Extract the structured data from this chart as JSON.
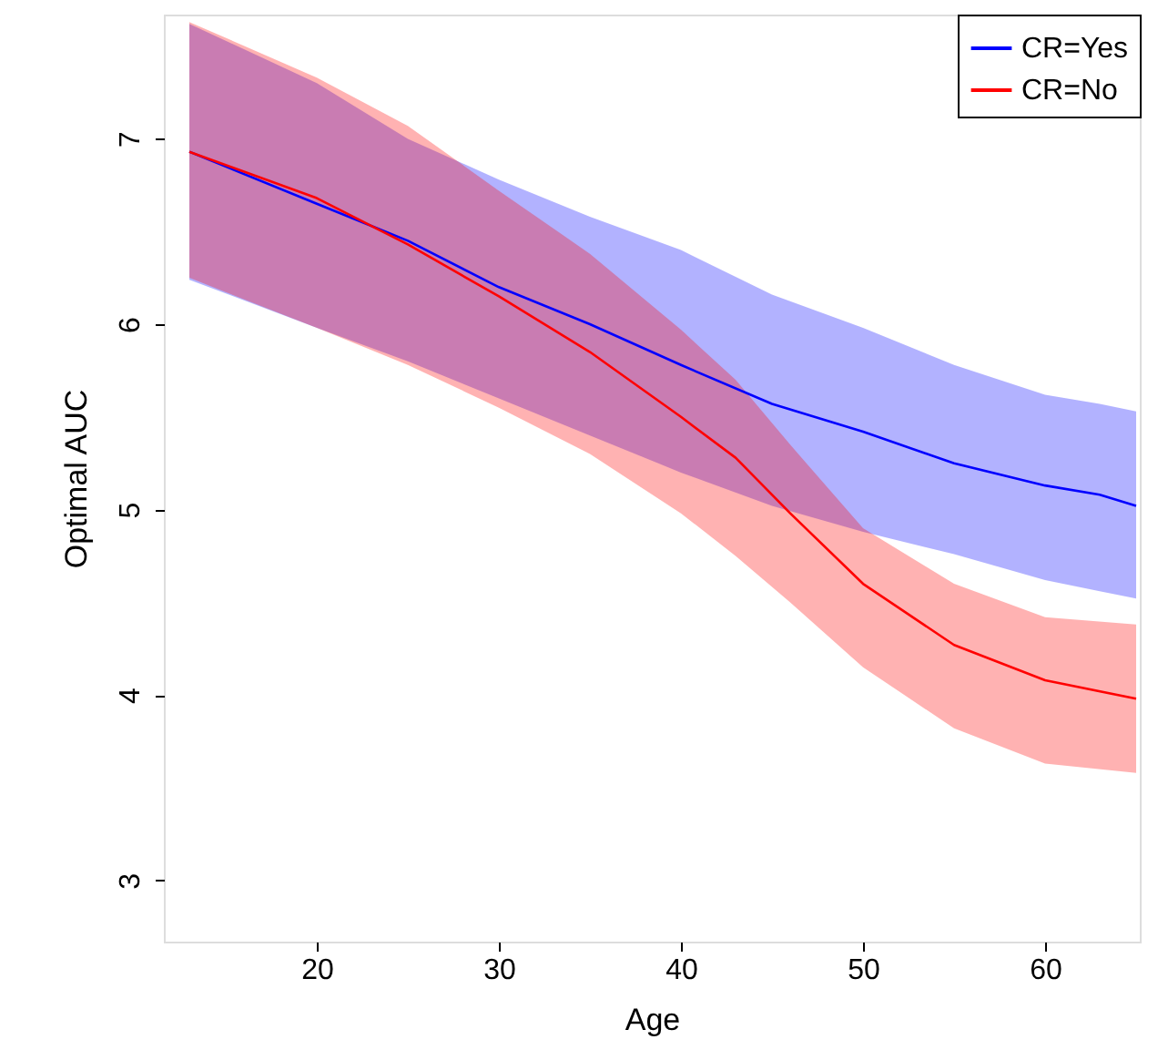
{
  "chart_data": {
    "type": "line",
    "xlabel": "Age",
    "ylabel": "Optimal AUC",
    "xlim": [
      11.6,
      65.2
    ],
    "ylim": [
      2.67,
      7.67
    ],
    "xticks": [
      20,
      30,
      40,
      50,
      60
    ],
    "yticks": [
      3,
      4,
      5,
      6,
      7
    ],
    "grid": false,
    "legend": "top right",
    "line_style": "solid",
    "marker": "none",
    "series": [
      {
        "name": "CR=Yes",
        "color": "#0000ff",
        "x": [
          13,
          20,
          25,
          30,
          35,
          40,
          45,
          50,
          55,
          60,
          63,
          65
        ],
        "values": [
          6.93,
          6.65,
          6.45,
          6.2,
          6.0,
          5.78,
          5.57,
          5.42,
          5.25,
          5.13,
          5.08,
          5.02
        ],
        "upper": [
          7.62,
          7.3,
          7.0,
          6.78,
          6.58,
          6.4,
          6.16,
          5.98,
          5.78,
          5.62,
          5.57,
          5.53
        ],
        "lower": [
          6.24,
          5.98,
          5.8,
          5.6,
          5.4,
          5.2,
          5.02,
          4.88,
          4.76,
          4.62,
          4.56,
          4.52
        ]
      },
      {
        "name": "CR=No",
        "color": "#ff0000",
        "x": [
          13,
          20,
          25,
          30,
          35,
          40,
          43,
          46,
          50,
          55,
          60,
          65
        ],
        "values": [
          6.93,
          6.68,
          6.43,
          6.15,
          5.85,
          5.5,
          5.28,
          4.98,
          4.6,
          4.27,
          4.08,
          3.98
        ],
        "upper": [
          7.63,
          7.33,
          7.07,
          6.72,
          6.38,
          5.97,
          5.7,
          5.35,
          4.9,
          4.6,
          4.42,
          4.38
        ],
        "lower": [
          6.25,
          5.98,
          5.78,
          5.55,
          5.3,
          4.98,
          4.75,
          4.5,
          4.15,
          3.82,
          3.63,
          3.58
        ]
      }
    ]
  }
}
